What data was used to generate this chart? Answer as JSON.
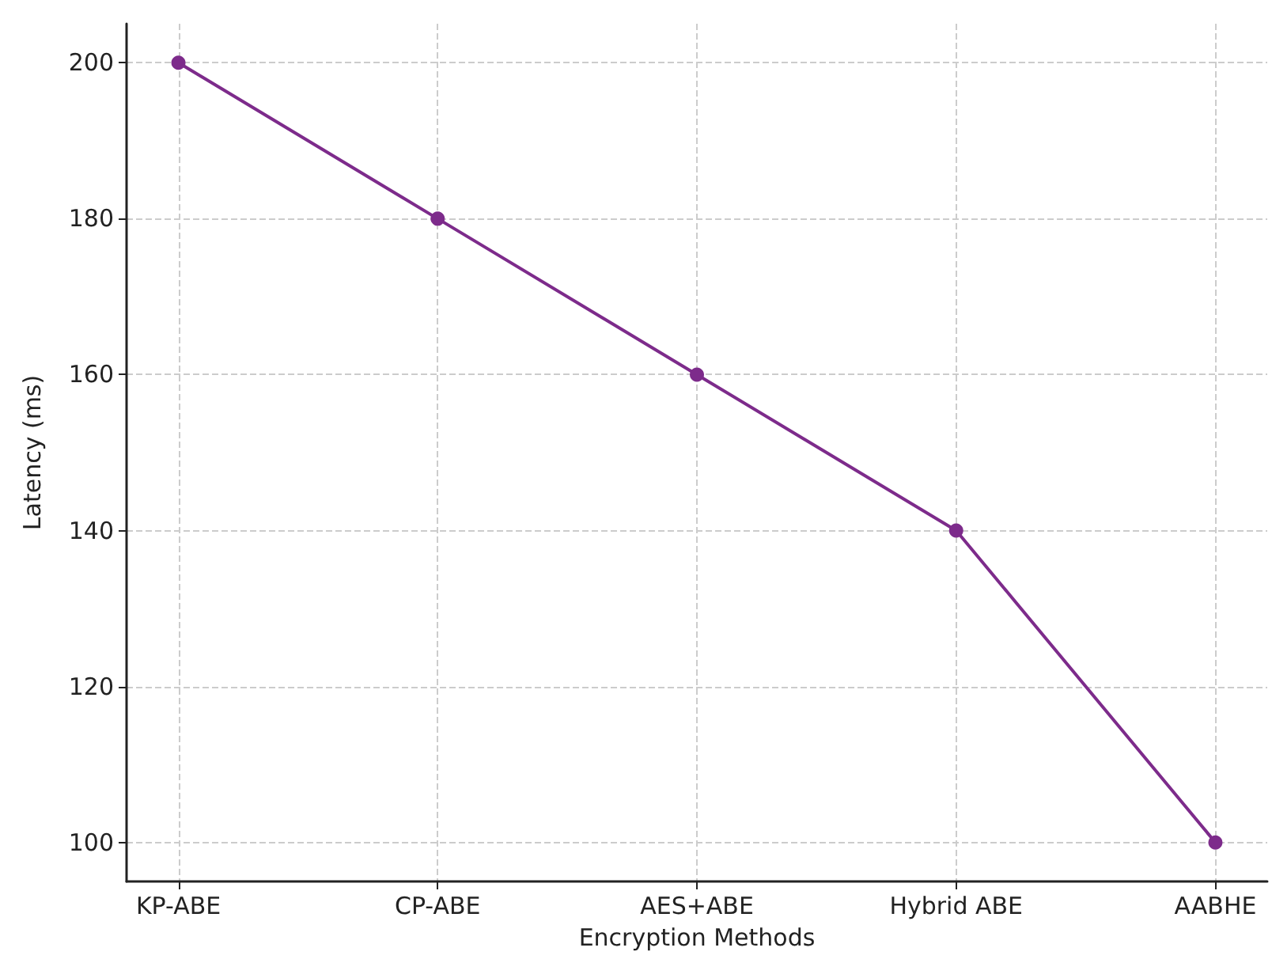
{
  "chart_data": {
    "type": "line",
    "xlabel": "Encryption Methods",
    "ylabel": "Latency (ms)",
    "categories": [
      "KP-ABE",
      "CP-ABE",
      "AES+ABE",
      "Hybrid ABE",
      "AABHE"
    ],
    "series": [
      {
        "color": "#7d2b8b",
        "values": [
          200,
          180,
          160,
          140,
          100
        ]
      }
    ],
    "ylim": [
      95,
      205
    ],
    "yticks": [
      100,
      120,
      140,
      160,
      180,
      200
    ],
    "grid": true,
    "marker": "circle",
    "line_style": "solid"
  }
}
